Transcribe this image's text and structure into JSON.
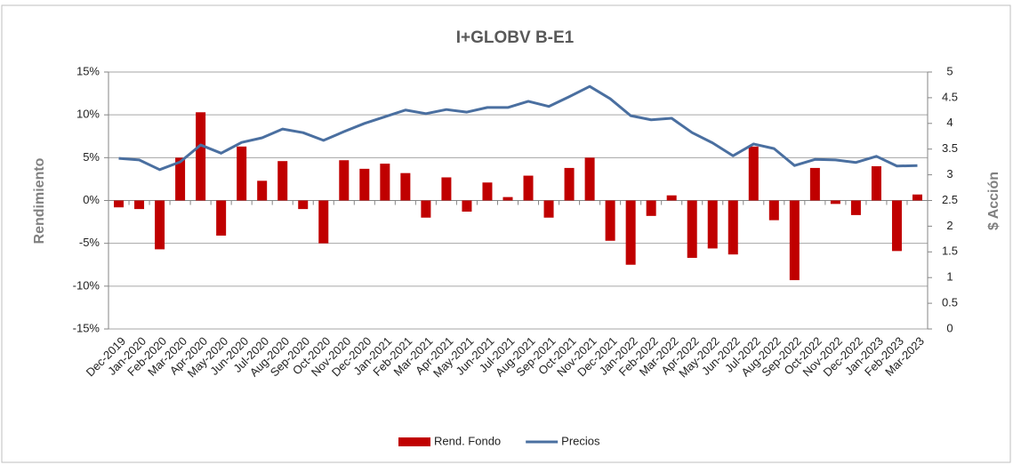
{
  "chart_data": {
    "type": "bar-line",
    "title": "I+GLOBV B-E1",
    "y_label": "Rendimiento",
    "y2_label": "$ Acción",
    "categories": [
      "Dec-2019",
      "Jan-2020",
      "Feb-2020",
      "Mar-2020",
      "Apr-2020",
      "May-2020",
      "Jun-2020",
      "Jul-2020",
      "Aug-2020",
      "Sep-2020",
      "Oct-2020",
      "Nov-2020",
      "Dec-2020",
      "Jan-2021",
      "Feb-2021",
      "Mar-2021",
      "Apr-2021",
      "May-2021",
      "Jun-2021",
      "Jul-2021",
      "Aug-2021",
      "Sep-2021",
      "Oct-2021",
      "Nov-2021",
      "Dec-2021",
      "Jan-2022",
      "Feb-2022",
      "Mar-2022",
      "Apr-2022",
      "May-2022",
      "Jun-2022",
      "Jul-2022",
      "Aug-2022",
      "Sep-2022",
      "Oct-2022",
      "Nov-2022",
      "Dec-2022",
      "Jan-2023",
      "Feb-2023",
      "Mar-2023"
    ],
    "series": [
      {
        "name": "Rend. Fondo",
        "type": "bar",
        "color": "#c00000",
        "values": [
          -0.8,
          -1.0,
          -5.7,
          5.0,
          10.3,
          -4.1,
          6.3,
          2.3,
          4.6,
          -1.0,
          -5.0,
          4.7,
          3.7,
          4.3,
          3.2,
          -2.0,
          2.7,
          -1.3,
          2.1,
          0.4,
          2.9,
          -2.0,
          3.8,
          5.0,
          -4.7,
          -7.5,
          -1.8,
          0.6,
          -6.7,
          -5.6,
          -6.3,
          6.3,
          -2.3,
          -9.3,
          3.8,
          -0.4,
          -1.7,
          4.0,
          -5.9,
          0.7
        ]
      },
      {
        "name": "Precios",
        "type": "line",
        "axis": "y2",
        "color": "#4a6fa0",
        "values": [
          3.32,
          3.29,
          3.1,
          3.25,
          3.58,
          3.42,
          3.63,
          3.72,
          3.89,
          3.82,
          3.67,
          3.84,
          4.0,
          4.13,
          4.26,
          4.19,
          4.27,
          4.22,
          4.31,
          4.31,
          4.43,
          4.33,
          4.52,
          4.72,
          4.48,
          4.15,
          4.07,
          4.1,
          3.82,
          3.62,
          3.37,
          3.6,
          3.51,
          3.18,
          3.3,
          3.29,
          3.24,
          3.36,
          3.17,
          3.18
        ]
      }
    ],
    "ylim": [
      -15,
      15
    ],
    "yticks": [
      {
        "value": -15,
        "label": "-15%"
      },
      {
        "value": -10,
        "label": "-10%"
      },
      {
        "value": -5,
        "label": "-5%"
      },
      {
        "value": 0,
        "label": "0%"
      },
      {
        "value": 5,
        "label": "5%"
      },
      {
        "value": 10,
        "label": "10%"
      },
      {
        "value": 15,
        "label": "15%"
      }
    ],
    "y2lim": [
      0,
      5
    ],
    "y2ticks": [
      0,
      0.5,
      1,
      1.5,
      2,
      2.5,
      3,
      3.5,
      4,
      4.5,
      5
    ],
    "grid": true,
    "legend": "bottom"
  }
}
